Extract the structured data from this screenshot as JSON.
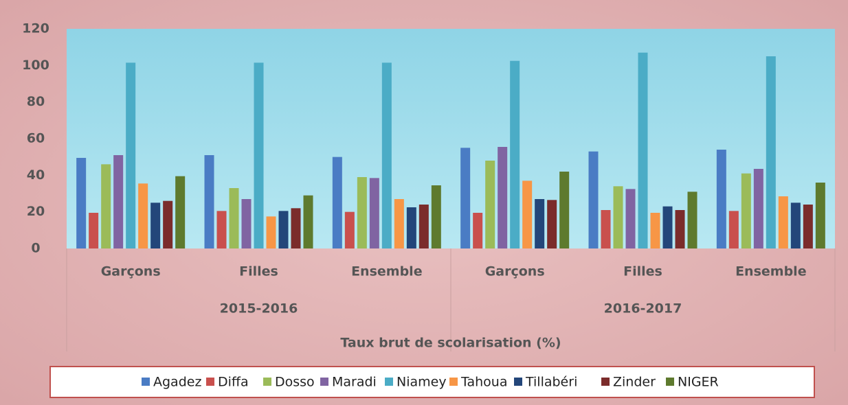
{
  "chart_data": {
    "type": "bar",
    "categories": [
      "Garçons",
      "Filles",
      "Ensemble",
      "Garçons",
      "Filles",
      "Ensemble"
    ],
    "category_groups": [
      "2015-2016",
      "2016-2017"
    ],
    "x_label": "Taux brut de scolarisation (%)",
    "ylim": [
      0,
      120
    ],
    "yticks": [
      0,
      20,
      40,
      60,
      80,
      100,
      120
    ],
    "grid": false,
    "legend": "bottom",
    "series": [
      {
        "name": "Agadez",
        "color": "#4a7cc4",
        "values": [
          49.5,
          51,
          50,
          55,
          53,
          54
        ]
      },
      {
        "name": "Diffa",
        "color": "#c9504d",
        "values": [
          19.5,
          20.5,
          20,
          19.5,
          21,
          20.5
        ]
      },
      {
        "name": "Dosso",
        "color": "#9bbb59",
        "values": [
          46,
          33,
          39,
          48,
          34,
          41
        ]
      },
      {
        "name": "Maradi",
        "color": "#8064a2",
        "values": [
          51,
          27,
          38.5,
          55.5,
          32.5,
          43.5
        ]
      },
      {
        "name": "Niamey",
        "color": "#4bacc6",
        "values": [
          101.5,
          101.5,
          101.5,
          102.5,
          107,
          105
        ]
      },
      {
        "name": "Tahoua",
        "color": "#f79646",
        "values": [
          35.5,
          17.5,
          27,
          37,
          19.5,
          28.5
        ]
      },
      {
        "name": "Tillabéri",
        "color": "#23467a",
        "values": [
          25,
          20.5,
          22.5,
          27,
          23,
          25
        ]
      },
      {
        "name": "Zinder",
        "color": "#7b2c2b",
        "values": [
          26,
          22,
          24,
          26.5,
          21,
          24
        ]
      },
      {
        "name": "NIGER",
        "color": "#5e7a2e",
        "values": [
          39.5,
          29,
          34.5,
          42,
          31,
          36
        ]
      }
    ]
  }
}
